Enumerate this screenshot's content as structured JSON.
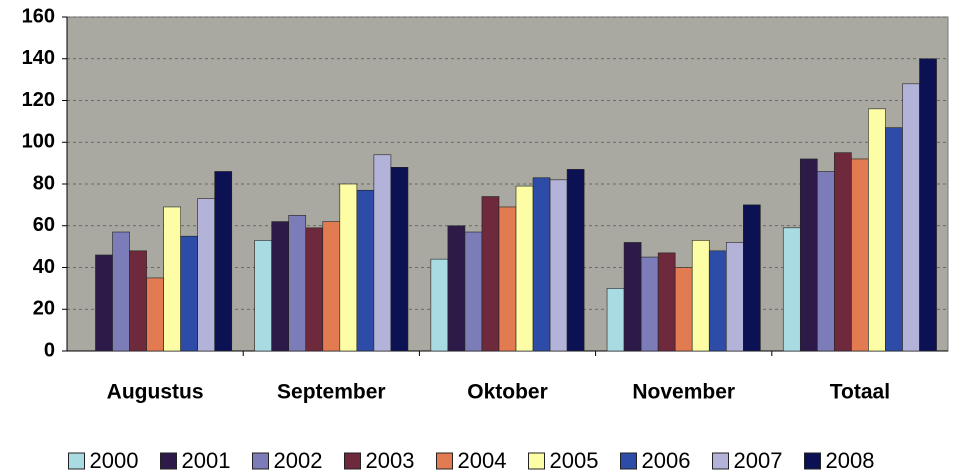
{
  "chart_data": {
    "type": "bar",
    "categories": [
      "Augustus",
      "September",
      "Oktober",
      "November",
      "Totaal"
    ],
    "series": [
      {
        "name": "2000",
        "color": "#a9dbe3",
        "values": [
          null,
          53,
          44,
          30,
          59
        ]
      },
      {
        "name": "2001",
        "color": "#2d1a48",
        "values": [
          46,
          62,
          60,
          52,
          92
        ]
      },
      {
        "name": "2002",
        "color": "#7c7cb8",
        "values": [
          57,
          65,
          57,
          45,
          86
        ]
      },
      {
        "name": "2003",
        "color": "#6e2a3c",
        "values": [
          48,
          59,
          74,
          47,
          95
        ]
      },
      {
        "name": "2004",
        "color": "#e27b52",
        "values": [
          35,
          62,
          69,
          40,
          92
        ]
      },
      {
        "name": "2005",
        "color": "#fdfda6",
        "values": [
          69,
          80,
          79,
          53,
          116
        ]
      },
      {
        "name": "2006",
        "color": "#2c4ca8",
        "values": [
          55,
          77,
          83,
          48,
          107
        ]
      },
      {
        "name": "2007",
        "color": "#b3b3da",
        "values": [
          73,
          94,
          82,
          52,
          128
        ]
      },
      {
        "name": "2008",
        "color": "#0b1152",
        "values": [
          86,
          88,
          87,
          70,
          140
        ]
      }
    ],
    "ylim": [
      0,
      160
    ],
    "yticks": [
      0,
      20,
      40,
      60,
      80,
      100,
      120,
      140,
      160
    ],
    "grid": true,
    "legend": "bottom"
  }
}
